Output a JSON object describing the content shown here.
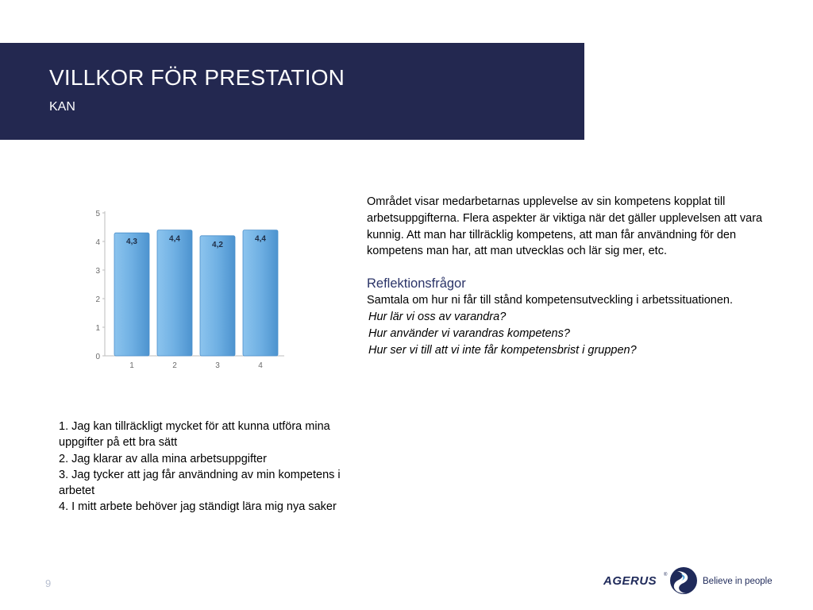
{
  "slide": {
    "title": "VILLKOR FÖR PRESTATION",
    "subtitle": "KAN",
    "page_number": "9"
  },
  "chart_data": {
    "type": "bar",
    "categories": [
      "1",
      "2",
      "3",
      "4"
    ],
    "values": [
      4.3,
      4.4,
      4.2,
      4.4
    ],
    "value_labels": [
      "4,3",
      "4,4",
      "4,2",
      "4,4"
    ],
    "yticks": [
      "0",
      "1",
      "2",
      "3",
      "4",
      "5"
    ],
    "ylim": [
      0,
      5
    ],
    "grid": false,
    "bar_color": "#6fb0e3"
  },
  "questions": [
    "1. Jag kan tillräckligt mycket för att kunna utföra mina uppgifter på ett bra sätt",
    "2. Jag klarar av alla mina arbetsuppgifter",
    "3. Jag tycker att jag får användning av min kompetens i arbetet",
    "4. I mitt arbete behöver jag ständigt lära mig nya saker"
  ],
  "description": "Området visar medarbetarnas upplevelse av sin kompetens kopplat till arbetsuppgifterna. Flera aspekter är viktiga när det gäller upplevelsen att vara kunnig. Att man har tillräcklig kompetens, att man får användning för den kompetens man har, att man utvecklas och lär sig mer, etc.",
  "reflection": {
    "heading": "Reflektionsfrågor",
    "intro": "Samtala om hur ni får till stånd kompetensutveckling i arbetssituationen.",
    "questions": [
      "Hur lär vi oss av varandra?",
      "Hur använder vi varandras kompetens?",
      "Hur ser vi till att vi inte får kompetensbrist i gruppen?"
    ]
  },
  "logo": {
    "name": "AGERUS",
    "registered": "®",
    "tagline": "Believe in people"
  },
  "colors": {
    "header_bg": "#232850",
    "accent": "#2b3468"
  }
}
